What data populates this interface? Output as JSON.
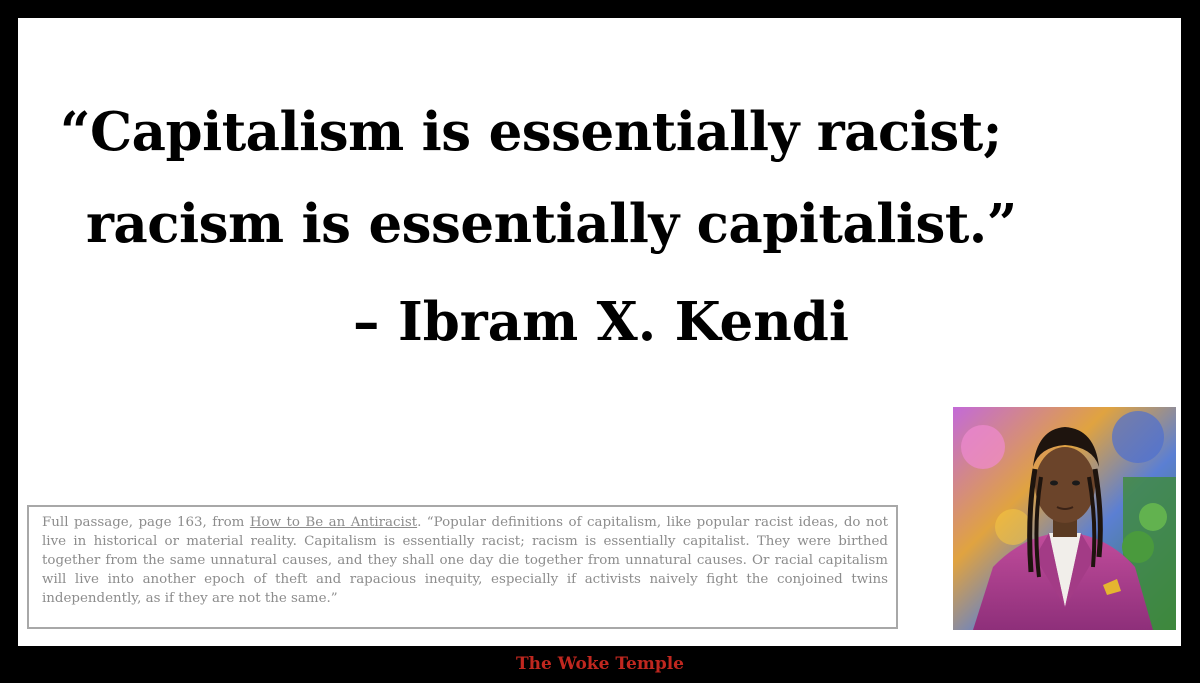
{
  "quote": {
    "line1": "“Capitalism is essentially racist;",
    "line2": "racism is essentially capitalist.”"
  },
  "attribution": "– Ibram X. Kendi",
  "passage": {
    "prefix": "Full passage, page 163, from ",
    "book_title": "How to Be an Antiracist",
    "text": ". “Popular definitions of capitalism, like popular racist ideas, do not live in historical or material reality. Capitalism is essentially racist; racism is essentially capitalist. They were birthed together from the same unnatural causes, and they shall one day die together from unnatural causes. Or racial capitalism will live into another epoch of theft and rapacious inequity, especially if activists naively fight the conjoined twins independently, as if they are not the same.”"
  },
  "footer": "The Woke Temple",
  "colors": {
    "background": "#000000",
    "card": "#ffffff",
    "footer_text": "#c0271f",
    "passage_text": "#8c8c8c",
    "jacket": "#b0408f"
  }
}
